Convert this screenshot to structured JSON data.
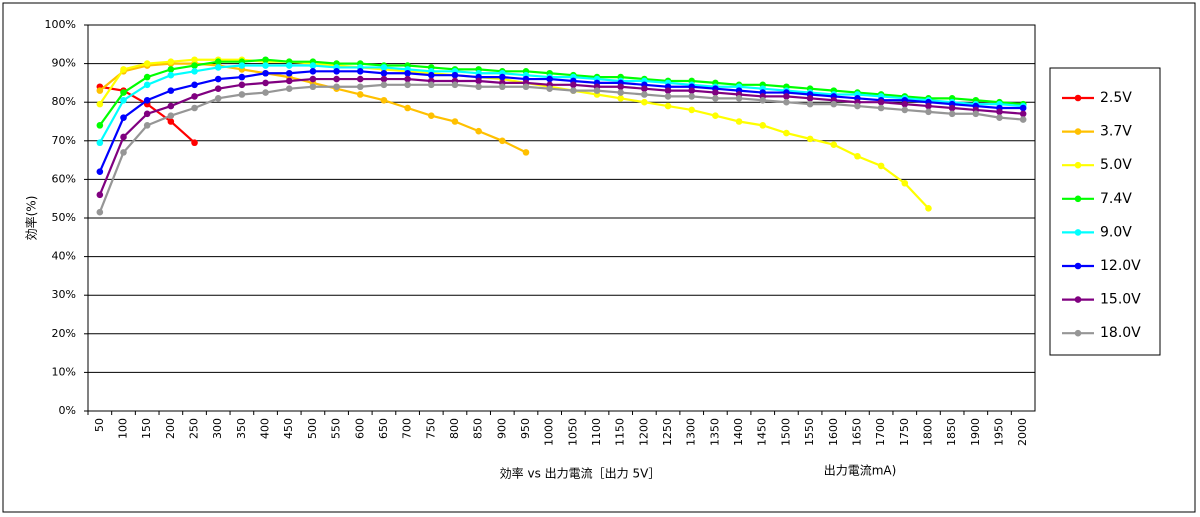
{
  "chart_data": {
    "type": "line",
    "title": "効率 vs 出力電流［出力 5V］",
    "x_label": "出力電流mA)",
    "y_label": "効率(%)",
    "categories": [
      "50",
      "100",
      "150",
      "200",
      "250",
      "300",
      "350",
      "400",
      "450",
      "500",
      "550",
      "600",
      "650",
      "700",
      "750",
      "800",
      "850",
      "900",
      "950",
      "1000",
      "1050",
      "1100",
      "1150",
      "1200",
      "1250",
      "1300",
      "1350",
      "1400",
      "1450",
      "1500",
      "1550",
      "1600",
      "1650",
      "1700",
      "1750",
      "1800",
      "1850",
      "1900",
      "1950",
      "2000"
    ],
    "ylim": [
      0,
      100
    ],
    "yticks": [
      {
        "value": 0,
        "label": "0%"
      },
      {
        "value": 10,
        "label": "10%"
      },
      {
        "value": 20,
        "label": "20%"
      },
      {
        "value": 30,
        "label": "30%"
      },
      {
        "value": 40,
        "label": "40%"
      },
      {
        "value": 50,
        "label": "50%"
      },
      {
        "value": 60,
        "label": "60%"
      },
      {
        "value": 70,
        "label": "70%"
      },
      {
        "value": 80,
        "label": "80%"
      },
      {
        "value": 90,
        "label": "90%"
      },
      {
        "value": 100,
        "label": "100%"
      }
    ],
    "grid": true,
    "legend": "right",
    "series": [
      {
        "name": "2.5V",
        "color": "#ff0000",
        "values": [
          84,
          83,
          79.5,
          75,
          69.5,
          null,
          null,
          null,
          null,
          null,
          null,
          null,
          null,
          null,
          null,
          null,
          null,
          null,
          null,
          null,
          null,
          null,
          null,
          null,
          null,
          null,
          null,
          null,
          null,
          null,
          null,
          null,
          null,
          null,
          null,
          null,
          null,
          null,
          null,
          null
        ]
      },
      {
        "name": "3.7V",
        "color": "#ffc000",
        "values": [
          83,
          88,
          89.5,
          90,
          90,
          89.5,
          88.5,
          87.5,
          86.5,
          85,
          83.5,
          82,
          80.5,
          78.5,
          76.5,
          75,
          72.5,
          70,
          67,
          null,
          null,
          null,
          null,
          null,
          null,
          null,
          null,
          null,
          null,
          null,
          null,
          null,
          null,
          null,
          null,
          null,
          null,
          null,
          null,
          null
        ]
      },
      {
        "name": "5.0V",
        "color": "#ffff00",
        "values": [
          79.5,
          88.5,
          90,
          90.5,
          91,
          91,
          91,
          90.5,
          90.5,
          90,
          89.5,
          89,
          88.5,
          88,
          87.5,
          87,
          86.5,
          86,
          85,
          84,
          83,
          82,
          81,
          80,
          79,
          78,
          76.5,
          75,
          74,
          72,
          70.5,
          69,
          66,
          63.5,
          59,
          52.5,
          null,
          null,
          null,
          null
        ]
      },
      {
        "name": "7.4V",
        "color": "#00ff00",
        "values": [
          74,
          82.5,
          86.5,
          88.5,
          89.5,
          90.5,
          90.5,
          91,
          90.5,
          90.5,
          90,
          90,
          89.5,
          89.5,
          89,
          88.5,
          88.5,
          88,
          88,
          87.5,
          87,
          86.5,
          86.5,
          86,
          85.5,
          85.5,
          85,
          84.5,
          84.5,
          84,
          83.5,
          83,
          82.5,
          82,
          81.5,
          81,
          81,
          80.5,
          80,
          79.5
        ]
      },
      {
        "name": "9.0V",
        "color": "#00ffff",
        "values": [
          69.5,
          80.5,
          84.5,
          87,
          88,
          89,
          89.5,
          89.5,
          89.5,
          89.5,
          89,
          89,
          89,
          88.5,
          88,
          88,
          87.5,
          87.5,
          87,
          86.5,
          86.5,
          86,
          85.5,
          85.5,
          85,
          84.5,
          84,
          84,
          83.5,
          83,
          82.5,
          82,
          82,
          81.5,
          81,
          80.5,
          80,
          79.5,
          79.5,
          79
        ]
      },
      {
        "name": "12.0V",
        "color": "#0000ff",
        "values": [
          62,
          76,
          80.5,
          83,
          84.5,
          86,
          86.5,
          87.5,
          87.5,
          88,
          88,
          88,
          87.5,
          87.5,
          87,
          87,
          86.5,
          86.5,
          86,
          86,
          85.5,
          85,
          85,
          84.5,
          84,
          84,
          83.5,
          83,
          82.5,
          82.5,
          82,
          81.5,
          81,
          80.5,
          80.5,
          80,
          79.5,
          79,
          78.5,
          78.5
        ]
      },
      {
        "name": "15.0V",
        "color": "#800080",
        "values": [
          56,
          71,
          77,
          79,
          81.5,
          83.5,
          84.5,
          85,
          85.5,
          86,
          86,
          86,
          86,
          86,
          85.5,
          85.5,
          85.5,
          85,
          85,
          84.5,
          84.5,
          84,
          84,
          83.5,
          83,
          83,
          82.5,
          82,
          81.5,
          81.5,
          81,
          80.5,
          80,
          80,
          79.5,
          79,
          78.5,
          78,
          77.5,
          77
        ]
      },
      {
        "name": "18.0V",
        "color": "#969696",
        "values": [
          51.5,
          67,
          74,
          76.5,
          78.5,
          81,
          82,
          82.5,
          83.5,
          84,
          84,
          84,
          84.5,
          84.5,
          84.5,
          84.5,
          84,
          84,
          84,
          83.5,
          83,
          83,
          82.5,
          82,
          81.5,
          81.5,
          81,
          81,
          80.5,
          80,
          79.5,
          79.5,
          79,
          78.5,
          78,
          77.5,
          77,
          77,
          76,
          75.5
        ]
      }
    ]
  }
}
